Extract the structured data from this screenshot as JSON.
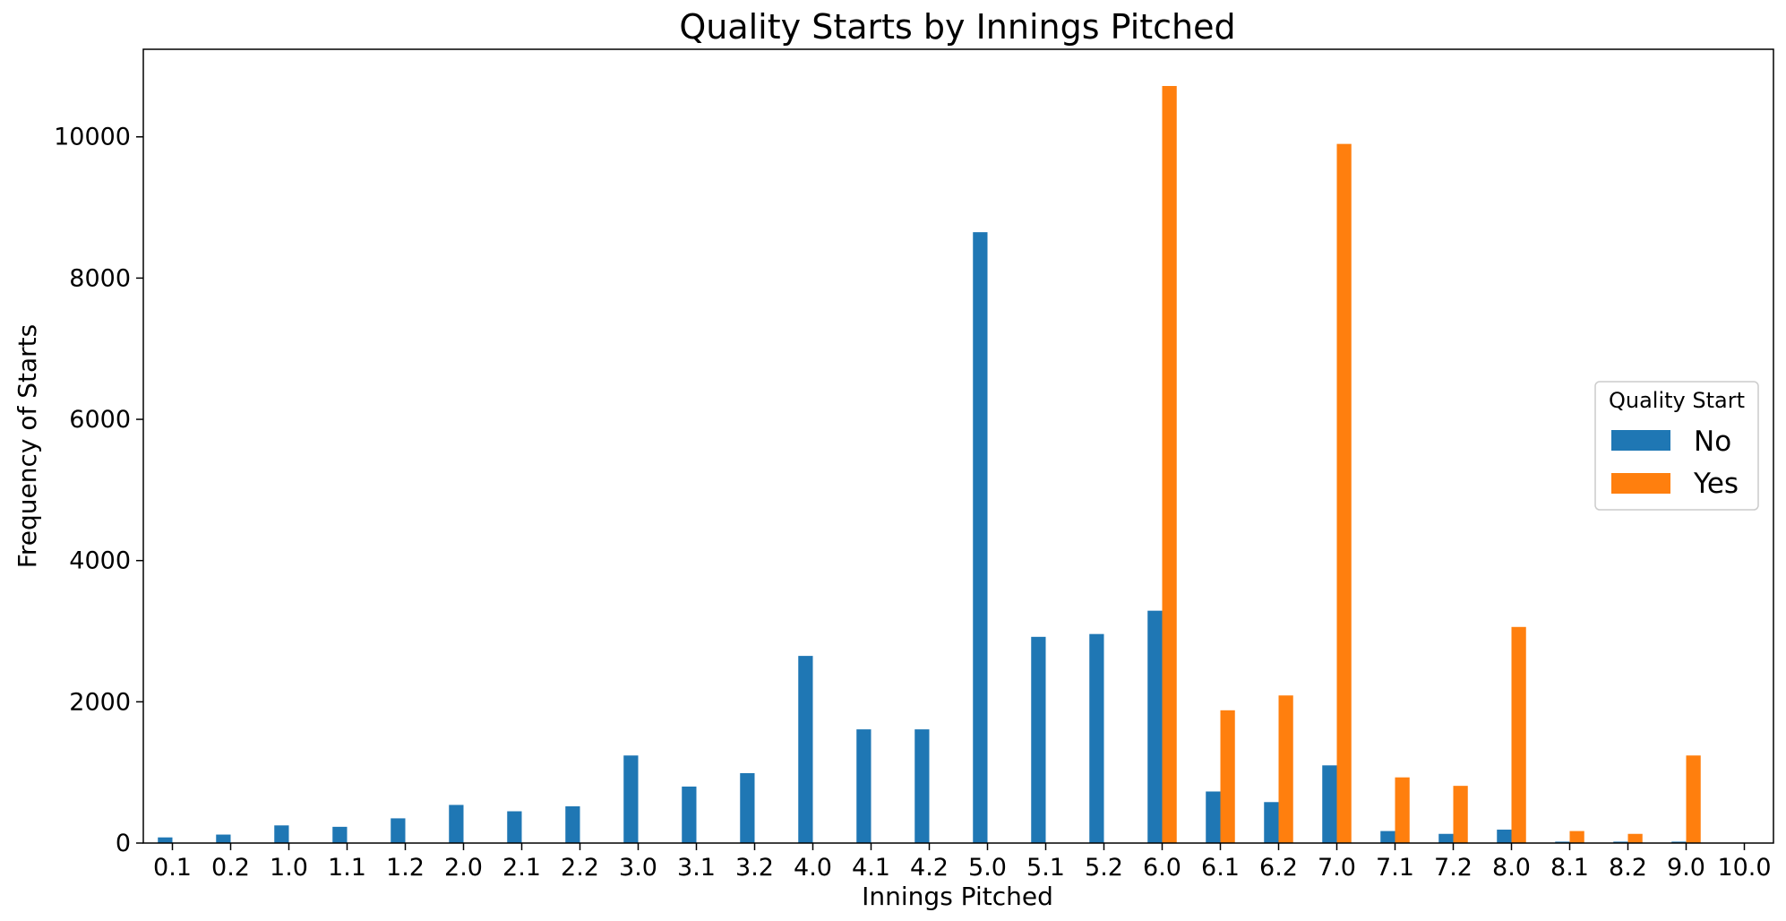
{
  "chart_data": {
    "type": "bar",
    "title": "Quality Starts by Innings Pitched",
    "xlabel": "Innings Pitched",
    "ylabel": "Frequency of Starts",
    "categories": [
      "0.1",
      "0.2",
      "1.0",
      "1.1",
      "1.2",
      "2.0",
      "2.1",
      "2.2",
      "3.0",
      "3.1",
      "3.2",
      "4.0",
      "4.1",
      "4.2",
      "5.0",
      "5.1",
      "5.2",
      "6.0",
      "6.1",
      "6.2",
      "7.0",
      "7.1",
      "7.2",
      "8.0",
      "8.1",
      "8.2",
      "9.0",
      "10.0"
    ],
    "series": [
      {
        "name": "No",
        "color": "#1f77b4",
        "values": [
          80,
          120,
          250,
          230,
          350,
          540,
          450,
          520,
          1240,
          800,
          990,
          2650,
          1610,
          1610,
          8650,
          2920,
          2960,
          3290,
          730,
          580,
          1100,
          170,
          130,
          190,
          20,
          20,
          20,
          0
        ]
      },
      {
        "name": "Yes",
        "color": "#ff7f0e",
        "values": [
          0,
          0,
          0,
          0,
          0,
          0,
          0,
          0,
          0,
          0,
          0,
          0,
          0,
          0,
          0,
          0,
          0,
          10720,
          1880,
          2090,
          9900,
          930,
          810,
          3060,
          170,
          130,
          1240,
          0
        ]
      }
    ],
    "ylim": [
      0,
      11240
    ],
    "yticks": [
      0,
      2000,
      4000,
      6000,
      8000,
      10000
    ],
    "legend": {
      "title": "Quality Start",
      "placement": "center-right"
    },
    "grid": false
  }
}
